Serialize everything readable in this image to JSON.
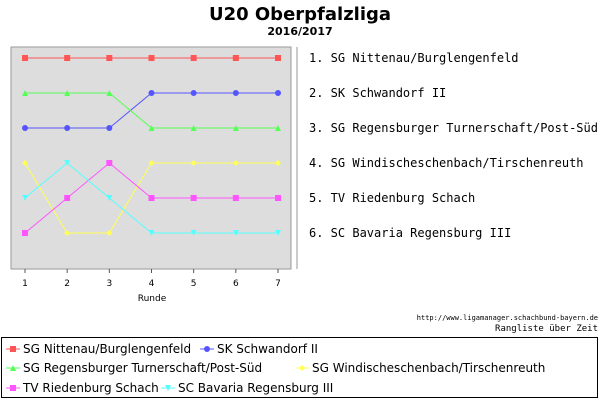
{
  "chart_data": {
    "type": "line",
    "title": "U20 Oberpfalzliga",
    "subtitle": "2016/2017",
    "xlabel": "Runde",
    "x": [
      1,
      2,
      3,
      4,
      5,
      6,
      7
    ],
    "ylim": [
      1,
      6
    ],
    "y_inverted": true,
    "grid": false,
    "legend_position": "bottom",
    "source_url": "http://www.ligamanager.schachbund-bayern.de",
    "caption": "Rangliste über Zeit",
    "series": [
      {
        "name": "SG Nittenau/Burglengenfeld",
        "label": "1. SG Nittenau/Burglengenfeld",
        "color": "#ff5555",
        "marker": "square",
        "values": [
          1,
          1,
          1,
          1,
          1,
          1,
          1
        ]
      },
      {
        "name": "SK Schwandorf II",
        "label": "2. SK Schwandorf II",
        "color": "#5555ff",
        "marker": "circle",
        "values": [
          3,
          3,
          3,
          2,
          2,
          2,
          2
        ]
      },
      {
        "name": "SG Regensburger Turnerschaft/Post-Süd",
        "label": "3. SG Regensburger Turnerschaft/Post-Süd",
        "color": "#55ff55",
        "marker": "triangle-up",
        "values": [
          2,
          2,
          2,
          3,
          3,
          3,
          3
        ]
      },
      {
        "name": "SG Windischeschenbach/Tirschenreuth",
        "label": "4. SG Windischeschenbach/Tirschenreuth",
        "color": "#ffff55",
        "marker": "diamond",
        "values": [
          4,
          6,
          6,
          4,
          4,
          4,
          4
        ]
      },
      {
        "name": "TV Riedenburg Schach",
        "label": "5. TV Riedenburg Schach",
        "color": "#ff55ff",
        "marker": "square",
        "values": [
          6,
          5,
          4,
          5,
          5,
          5,
          5
        ]
      },
      {
        "name": "SC Bavaria Regensburg III",
        "label": "6. SC Bavaria Regensburg III",
        "color": "#55ffff",
        "marker": "triangle-down",
        "values": [
          5,
          4,
          5,
          6,
          6,
          6,
          6
        ]
      }
    ]
  }
}
